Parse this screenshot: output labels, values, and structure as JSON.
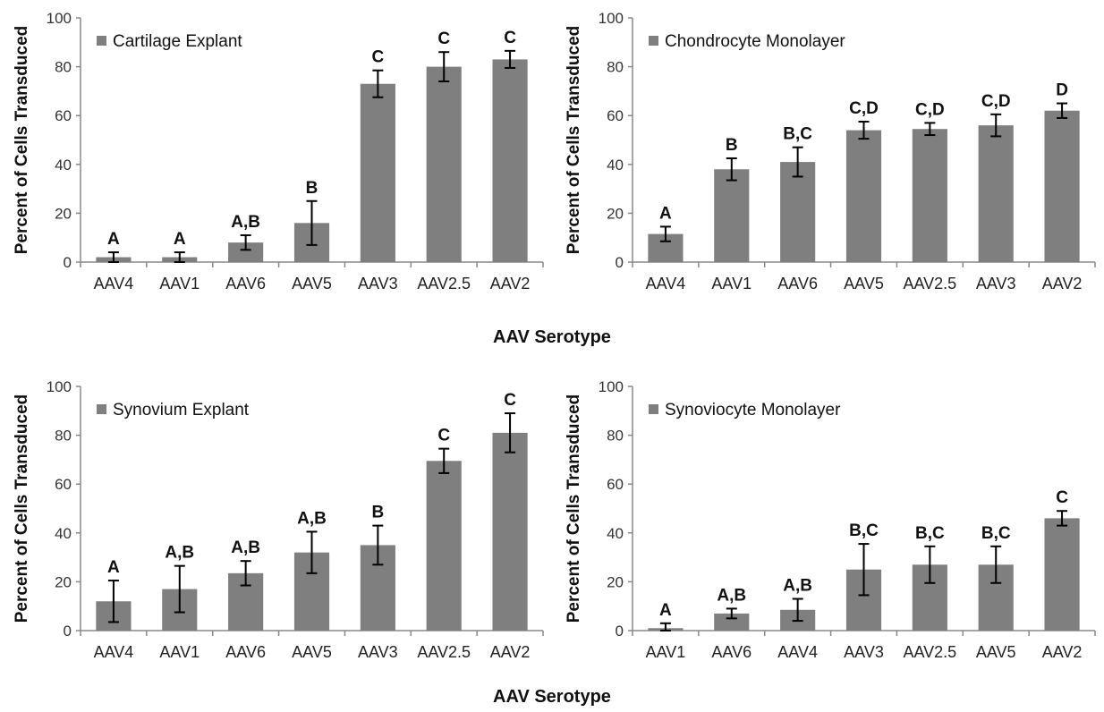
{
  "figure": {
    "xlabel_top": "AAV Serotype",
    "xlabel_bottom": "AAV Serotype"
  },
  "colors": {
    "bar": "#7f7f7f",
    "axis": "#888888",
    "text": "#111111"
  },
  "chart_data": [
    {
      "type": "bar",
      "title": "",
      "legend": "Cartilage Explant",
      "legend_position": "top-left",
      "ylabel": "Percent of Cells Transduced",
      "xlabel": "",
      "ylim": [
        0,
        100
      ],
      "yticks": [
        0,
        20,
        40,
        60,
        80,
        100
      ],
      "grid": false,
      "categories": [
        "AAV4",
        "AAV1",
        "AAV6",
        "AAV5",
        "AAV3",
        "AAV2.5",
        "AAV2"
      ],
      "values": [
        2,
        2,
        8,
        16,
        73,
        80,
        83
      ],
      "errors": [
        2,
        2,
        3,
        9,
        5.5,
        6,
        3.5
      ],
      "annotations": [
        "A",
        "A",
        "A,B",
        "B",
        "C",
        "C",
        "C"
      ]
    },
    {
      "type": "bar",
      "title": "",
      "legend": "Chondrocyte Monolayer",
      "legend_position": "top-left",
      "ylabel": "Percent of Cells Transduced",
      "xlabel": "",
      "ylim": [
        0,
        100
      ],
      "yticks": [
        0,
        20,
        40,
        60,
        80,
        100
      ],
      "grid": false,
      "categories": [
        "AAV4",
        "AAV1",
        "AAV6",
        "AAV5",
        "AAV2.5",
        "AAV3",
        "AAV2"
      ],
      "values": [
        11.5,
        38,
        41,
        54,
        54.5,
        56,
        62
      ],
      "errors": [
        3,
        4.5,
        6,
        3.5,
        2.5,
        4.5,
        3
      ],
      "annotations": [
        "A",
        "B",
        "B,C",
        "C,D",
        "C,D",
        "C,D",
        "D"
      ]
    },
    {
      "type": "bar",
      "title": "",
      "legend": "Synovium Explant",
      "legend_position": "top-left",
      "ylabel": "Percent of Cells Transduced",
      "xlabel": "",
      "ylim": [
        0,
        100
      ],
      "yticks": [
        0,
        20,
        40,
        60,
        80,
        100
      ],
      "grid": false,
      "categories": [
        "AAV4",
        "AAV1",
        "AAV6",
        "AAV5",
        "AAV3",
        "AAV2.5",
        "AAV2"
      ],
      "values": [
        12,
        17,
        23.5,
        32,
        35,
        69.5,
        81
      ],
      "errors": [
        8.5,
        9.5,
        5,
        8.5,
        8,
        5,
        8
      ],
      "annotations": [
        "A",
        "A,B",
        "A,B",
        "A,B",
        "B",
        "C",
        "C"
      ]
    },
    {
      "type": "bar",
      "title": "",
      "legend": "Synoviocyte Monolayer",
      "legend_position": "top-left",
      "ylabel": "Percent of Cells Transduced",
      "xlabel": "",
      "ylim": [
        0,
        100
      ],
      "yticks": [
        0,
        20,
        40,
        60,
        80,
        100
      ],
      "grid": false,
      "categories": [
        "AAV1",
        "AAV6",
        "AAV4",
        "AAV3",
        "AAV2.5",
        "AAV5",
        "AAV2"
      ],
      "values": [
        1,
        7,
        8.5,
        25,
        27,
        27,
        46
      ],
      "errors": [
        2,
        2,
        4.5,
        10.5,
        7.5,
        7.5,
        3
      ],
      "annotations": [
        "A",
        "A,B",
        "A,B",
        "B,C",
        "B,C",
        "B,C",
        "C"
      ]
    }
  ]
}
